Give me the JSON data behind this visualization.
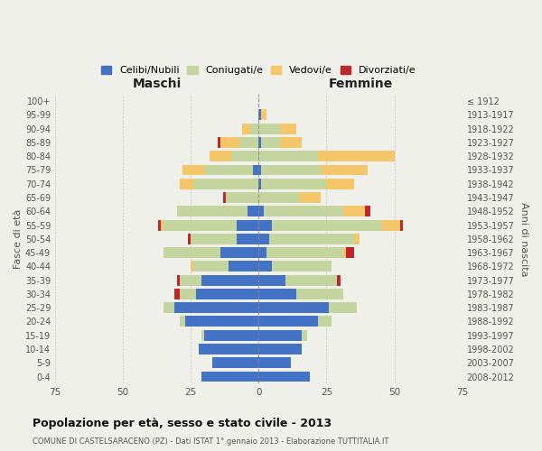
{
  "age_groups": [
    "0-4",
    "5-9",
    "10-14",
    "15-19",
    "20-24",
    "25-29",
    "30-34",
    "35-39",
    "40-44",
    "45-49",
    "50-54",
    "55-59",
    "60-64",
    "65-69",
    "70-74",
    "75-79",
    "80-84",
    "85-89",
    "90-94",
    "95-99",
    "100+"
  ],
  "birth_years": [
    "2008-2012",
    "2003-2007",
    "1998-2002",
    "1993-1997",
    "1988-1992",
    "1983-1987",
    "1978-1982",
    "1973-1977",
    "1968-1972",
    "1963-1967",
    "1958-1962",
    "1953-1957",
    "1948-1952",
    "1943-1947",
    "1938-1942",
    "1933-1937",
    "1928-1932",
    "1923-1927",
    "1918-1922",
    "1913-1917",
    "≤ 1912"
  ],
  "colors": {
    "celibe": "#4472c4",
    "coniugato": "#c5d5a0",
    "vedovo": "#f5c76a",
    "divorziato": "#c0272d"
  },
  "maschi": {
    "celibe": [
      21,
      17,
      22,
      20,
      27,
      31,
      23,
      21,
      11,
      14,
      8,
      8,
      4,
      0,
      0,
      2,
      0,
      0,
      0,
      0,
      0
    ],
    "coniugato": [
      0,
      0,
      0,
      1,
      2,
      4,
      6,
      8,
      13,
      21,
      17,
      27,
      26,
      12,
      24,
      18,
      10,
      7,
      3,
      0,
      0
    ],
    "vedovo": [
      0,
      0,
      0,
      0,
      0,
      0,
      0,
      0,
      1,
      0,
      0,
      1,
      0,
      0,
      5,
      8,
      8,
      7,
      3,
      0,
      0
    ],
    "divorziato": [
      0,
      0,
      0,
      0,
      0,
      0,
      2,
      1,
      0,
      0,
      1,
      1,
      0,
      1,
      0,
      0,
      0,
      1,
      0,
      0,
      0
    ]
  },
  "femmine": {
    "nubile": [
      19,
      12,
      16,
      16,
      22,
      26,
      14,
      10,
      5,
      3,
      4,
      5,
      2,
      0,
      1,
      1,
      0,
      1,
      0,
      1,
      0
    ],
    "coniugata": [
      0,
      0,
      0,
      2,
      5,
      10,
      17,
      19,
      22,
      28,
      31,
      40,
      29,
      15,
      24,
      22,
      22,
      7,
      8,
      0,
      0
    ],
    "vedova": [
      0,
      0,
      0,
      0,
      0,
      0,
      0,
      0,
      0,
      1,
      2,
      7,
      8,
      8,
      10,
      17,
      28,
      8,
      6,
      2,
      0
    ],
    "divorziata": [
      0,
      0,
      0,
      0,
      0,
      0,
      0,
      1,
      0,
      3,
      0,
      1,
      2,
      0,
      0,
      0,
      0,
      0,
      0,
      0,
      0
    ]
  },
  "title": "Popolazione per età, sesso e stato civile - 2013",
  "subtitle": "COMUNE DI CASTELSARACENO (PZ) - Dati ISTAT 1° gennaio 2013 - Elaborazione TUTTITALIA.IT",
  "xlabel_left": "Maschi",
  "xlabel_right": "Femmine",
  "ylabel_left": "Fasce di età",
  "ylabel_right": "Anni di nascita",
  "xlim": 75,
  "bg_color": "#f0f0eb",
  "legend_labels": [
    "Celibi/Nubili",
    "Coniugati/e",
    "Vedovi/e",
    "Divorziati/e"
  ]
}
